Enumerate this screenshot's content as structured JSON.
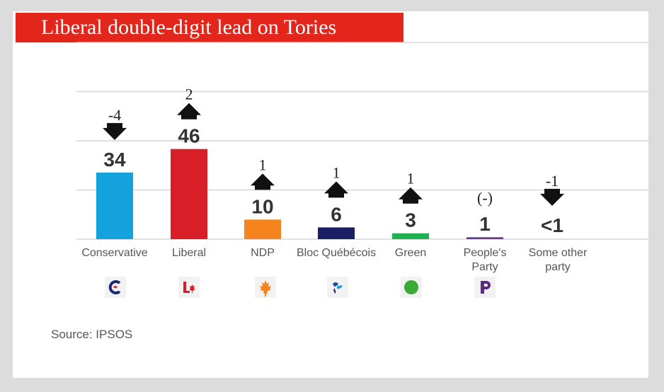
{
  "title": "Liberal double-digit lead on Tories",
  "source": "Source: IPSOS",
  "chart_data": {
    "type": "bar",
    "title": "Liberal double-digit lead on Tories",
    "categories": [
      "Conservative",
      "Liberal",
      "NDP",
      "Bloc Québécois",
      "Green",
      "People's Party",
      "Some other party"
    ],
    "category_lines": [
      [
        "Conservative"
      ],
      [
        "Liberal"
      ],
      [
        "NDP"
      ],
      [
        "Bloc Québécois"
      ],
      [
        "Green"
      ],
      [
        "People's",
        "Party"
      ],
      [
        "Some other",
        "party"
      ]
    ],
    "values": [
      34,
      46,
      10,
      6,
      3,
      1,
      0.4
    ],
    "value_labels": [
      "34",
      "46",
      "10",
      "6",
      "3",
      "1",
      "<1"
    ],
    "changes": [
      "-4",
      "2",
      "1",
      "1",
      "1",
      "(-)",
      "-1"
    ],
    "change_direction": [
      "down",
      "up",
      "up",
      "up",
      "up",
      "none",
      "down"
    ],
    "colors": [
      "#14a2dc",
      "#d81f27",
      "#f5841f",
      "#1a1f63",
      "#1fb050",
      "#6b3d8f",
      "#999999"
    ],
    "party_icons": [
      "conservative-logo-icon",
      "liberal-logo-icon",
      "ndp-logo-icon",
      "bloc-logo-icon",
      "green-logo-icon",
      "ppc-logo-icon",
      ""
    ],
    "ylim": [
      0,
      60
    ],
    "grid": true,
    "legend": "none"
  }
}
